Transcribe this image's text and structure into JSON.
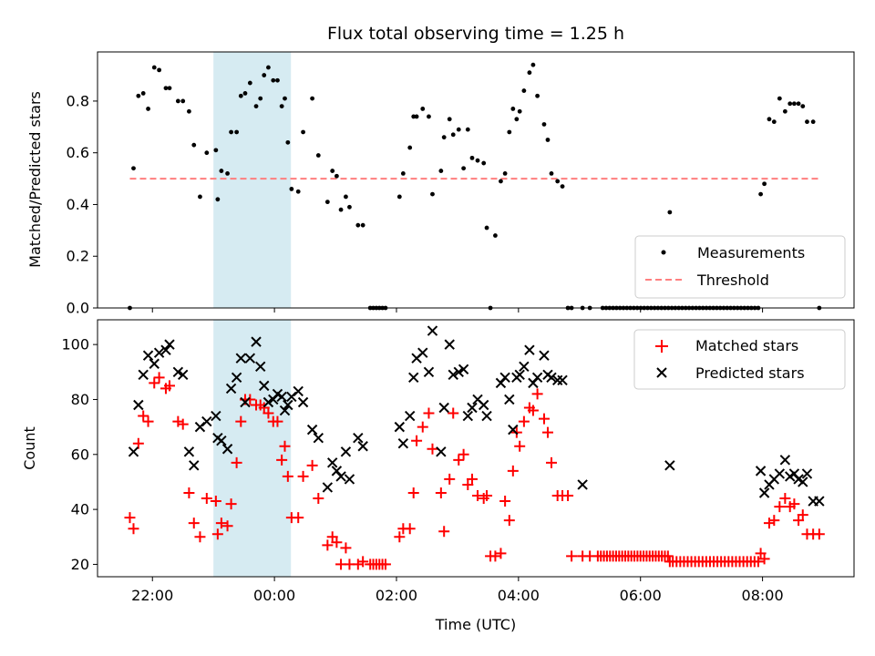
{
  "colors": {
    "measurements": "#000000",
    "threshold": "#ff7f7f",
    "matched": "#ff0000",
    "predicted": "#000000",
    "span": "#add8e6"
  },
  "chart_data": [
    {
      "type": "scatter",
      "title": "Flux total observing time = 1.25 h",
      "xlabel": "",
      "ylabel": "Matched/Predicted stars",
      "x_unit": "hours after 00:00 UTC (negative = previous evening)",
      "xlim": [
        -2.9,
        9.5
      ],
      "ylim": [
        0,
        0.99
      ],
      "yticks": [
        0.0,
        0.2,
        0.4,
        0.6,
        0.8
      ],
      "ytick_labels": [
        "0.0",
        "0.2",
        "0.4",
        "0.6",
        "0.8"
      ],
      "grid": false,
      "legend_position": "lower right",
      "shaded_interval": {
        "x": [
          -1.0,
          0.27
        ],
        "color": "#add8e6"
      },
      "series": [
        {
          "name": "Measurements",
          "style": "dot",
          "color": "#000000",
          "x": [
            -2.37,
            -2.31,
            -2.23,
            -2.15,
            -2.07,
            -1.97,
            -1.89,
            -1.78,
            -1.72,
            -1.58,
            -1.5,
            -1.4,
            -1.32,
            -1.22,
            -1.11,
            -0.96,
            -0.93,
            -0.87,
            -0.77,
            -0.71,
            -0.62,
            -0.55,
            -0.48,
            -0.4,
            -0.3,
            -0.23,
            -0.17,
            -0.1,
            -0.02,
            0.05,
            0.12,
            0.17,
            0.22,
            0.28,
            0.39,
            0.47,
            0.62,
            0.72,
            0.87,
            0.95,
            1.02,
            1.09,
            1.17,
            1.23,
            1.37,
            1.45,
            1.57,
            1.62,
            1.67,
            1.72,
            1.77,
            1.82,
            2.05,
            2.11,
            2.22,
            2.28,
            2.33,
            2.43,
            2.53,
            2.59,
            2.73,
            2.78,
            2.87,
            2.93,
            3.02,
            3.1,
            3.17,
            3.24,
            3.33,
            3.43,
            3.48,
            3.54,
            3.62,
            3.71,
            3.78,
            3.85,
            3.91,
            3.97,
            4.02,
            4.09,
            4.18,
            4.24,
            4.31,
            4.42,
            4.48,
            4.54,
            4.64,
            4.72,
            4.81,
            4.87,
            5.05,
            5.17,
            6.48,
            7.97,
            8.03,
            8.11,
            8.19,
            8.28,
            8.37,
            8.45,
            8.52,
            8.59,
            8.66,
            8.73,
            8.83,
            8.93
          ],
          "y": [
            0.0,
            0.54,
            0.82,
            0.83,
            0.77,
            0.93,
            0.92,
            0.85,
            0.85,
            0.8,
            0.8,
            0.76,
            0.63,
            0.43,
            0.6,
            0.61,
            0.42,
            0.53,
            0.52,
            0.68,
            0.68,
            0.82,
            0.83,
            0.87,
            0.78,
            0.81,
            0.9,
            0.93,
            0.88,
            0.88,
            0.78,
            0.81,
            0.64,
            0.46,
            0.45,
            0.68,
            0.81,
            0.59,
            0.41,
            0.53,
            0.51,
            0.38,
            0.43,
            0.39,
            0.32,
            0.32,
            0.0,
            0.0,
            0.0,
            0.0,
            0.0,
            0.0,
            0.43,
            0.52,
            0.62,
            0.74,
            0.74,
            0.77,
            0.74,
            0.44,
            0.53,
            0.66,
            0.73,
            0.67,
            0.69,
            0.54,
            0.69,
            0.58,
            0.57,
            0.56,
            0.31,
            0.0,
            0.28,
            0.49,
            0.52,
            0.68,
            0.77,
            0.73,
            0.76,
            0.84,
            0.91,
            0.94,
            0.82,
            0.71,
            0.65,
            0.52,
            0.49,
            0.47,
            0.0,
            0.0,
            0.0,
            0.0,
            0.37,
            0.44,
            0.48,
            0.73,
            0.72,
            0.81,
            0.76,
            0.79,
            0.79,
            0.79,
            0.78,
            0.72,
            0.72,
            0.0
          ]
        },
        {
          "name": "Threshold",
          "style": "dashed-line",
          "color": "#ff7f7f",
          "x": [
            -2.37,
            8.96
          ],
          "y": [
            0.5,
            0.5
          ]
        }
      ],
      "zero_runs": [
        {
          "x_start": 5.38,
          "x_end": 7.93,
          "count": 46,
          "y": 0.0
        }
      ]
    },
    {
      "type": "scatter",
      "title": "",
      "xlabel": "Time (UTC)",
      "ylabel": "Count",
      "x_unit": "hours after 00:00 UTC (negative = previous evening)",
      "xlim": [
        -2.9,
        9.5
      ],
      "ylim": [
        15.5,
        109
      ],
      "yticks": [
        20,
        40,
        60,
        80,
        100
      ],
      "ytick_labels": [
        "20",
        "40",
        "60",
        "80",
        "100"
      ],
      "xticks": [
        -2,
        0,
        2,
        4,
        6,
        8
      ],
      "xtick_labels": [
        "22:00",
        "00:00",
        "02:00",
        "04:00",
        "06:00",
        "08:00"
      ],
      "grid": false,
      "legend_position": "upper right",
      "shaded_interval": {
        "x": [
          -1.0,
          0.27
        ],
        "color": "#add8e6"
      },
      "series": [
        {
          "name": "Matched stars",
          "style": "plus",
          "color": "#ff0000",
          "x": [
            -2.37,
            -2.31,
            -2.23,
            -2.15,
            -2.07,
            -1.97,
            -1.89,
            -1.78,
            -1.72,
            -1.58,
            -1.5,
            -1.4,
            -1.32,
            -1.22,
            -1.11,
            -0.96,
            -0.93,
            -0.87,
            -0.77,
            -0.71,
            -0.62,
            -0.55,
            -0.48,
            -0.4,
            -0.3,
            -0.23,
            -0.17,
            -0.1,
            -0.02,
            0.05,
            0.12,
            0.17,
            0.22,
            0.28,
            0.39,
            0.47,
            0.62,
            0.72,
            0.87,
            0.95,
            1.02,
            1.09,
            1.17,
            1.23,
            1.37,
            1.45,
            1.57,
            1.62,
            1.67,
            1.72,
            1.77,
            1.82,
            2.05,
            2.11,
            2.22,
            2.28,
            2.33,
            2.43,
            2.53,
            2.59,
            2.73,
            2.78,
            2.87,
            2.93,
            3.02,
            3.1,
            3.17,
            3.24,
            3.33,
            3.43,
            3.48,
            3.54,
            3.62,
            3.71,
            3.78,
            3.85,
            3.91,
            3.97,
            4.02,
            4.09,
            4.18,
            4.24,
            4.31,
            4.42,
            4.48,
            4.54,
            4.64,
            4.72,
            4.81,
            4.87,
            5.05,
            5.17,
            6.48,
            7.97,
            8.03,
            8.11,
            8.19,
            8.28,
            8.37,
            8.45,
            8.52,
            8.59,
            8.66,
            8.73,
            8.83,
            8.93
          ],
          "y": [
            37,
            33,
            64,
            74,
            72,
            86,
            88,
            84,
            85,
            72,
            71,
            46,
            35,
            30,
            44,
            43,
            31,
            35,
            34,
            42,
            57,
            72,
            80,
            80,
            78,
            78,
            77,
            75,
            72,
            72,
            58,
            63,
            52,
            37,
            37,
            52,
            56,
            44,
            27,
            30,
            28,
            20,
            26,
            20,
            20,
            21,
            20,
            20,
            20,
            20,
            20,
            20,
            30,
            33,
            33,
            46,
            65,
            70,
            75,
            62,
            46,
            32,
            51,
            75,
            58,
            60,
            49,
            51,
            45,
            44,
            45,
            23,
            23,
            24,
            43,
            36,
            54,
            68,
            63,
            72,
            77,
            76,
            82,
            73,
            68,
            57,
            45,
            45,
            45,
            23,
            23,
            23,
            21,
            24,
            22,
            35,
            36,
            41,
            44,
            41,
            42,
            36,
            38,
            31,
            31,
            31
          ]
        },
        {
          "name": "Predicted stars",
          "style": "x",
          "color": "#000000",
          "x": [
            -2.31,
            -2.23,
            -2.15,
            -2.07,
            -1.97,
            -1.89,
            -1.78,
            -1.72,
            -1.58,
            -1.5,
            -1.4,
            -1.32,
            -1.22,
            -1.11,
            -0.96,
            -0.93,
            -0.87,
            -0.77,
            -0.71,
            -0.62,
            -0.55,
            -0.48,
            -0.4,
            -0.3,
            -0.23,
            -0.17,
            -0.1,
            -0.02,
            0.05,
            0.12,
            0.17,
            0.22,
            0.28,
            0.39,
            0.47,
            0.62,
            0.72,
            0.87,
            0.95,
            1.02,
            1.09,
            1.17,
            1.23,
            1.37,
            1.45,
            2.05,
            2.11,
            2.22,
            2.28,
            2.33,
            2.43,
            2.53,
            2.59,
            2.73,
            2.78,
            2.87,
            2.93,
            3.02,
            3.1,
            3.17,
            3.24,
            3.33,
            3.43,
            3.48,
            3.71,
            3.78,
            3.85,
            3.91,
            3.97,
            4.02,
            4.09,
            4.18,
            4.24,
            4.31,
            4.42,
            4.48,
            4.54,
            4.64,
            4.72,
            5.05,
            6.48,
            7.97,
            8.03,
            8.11,
            8.19,
            8.28,
            8.37,
            8.45,
            8.52,
            8.59,
            8.66,
            8.73,
            8.83,
            8.93
          ],
          "y": [
            61,
            78,
            89,
            96,
            93,
            97,
            98,
            100,
            90,
            89,
            61,
            56,
            70,
            72,
            74,
            66,
            65,
            62,
            84,
            88,
            95,
            79,
            95,
            101,
            92,
            85,
            79,
            80,
            82,
            81,
            76,
            78,
            81,
            83,
            79,
            69,
            66,
            48,
            57,
            54,
            52,
            61,
            51,
            66,
            63,
            70,
            64,
            74,
            88,
            95,
            97,
            90,
            105,
            61,
            77,
            100,
            89,
            90,
            91,
            74,
            77,
            80,
            78,
            74,
            86,
            88,
            80,
            69,
            88,
            89,
            92,
            98,
            86,
            88,
            96,
            89,
            88,
            87,
            87,
            49,
            56,
            54,
            46,
            49,
            51,
            53,
            58,
            52,
            53,
            51,
            50,
            53,
            43,
            43
          ]
        }
      ],
      "constant_runs": [
        {
          "series": "Matched stars",
          "x_start": 5.3,
          "x_end": 6.45,
          "count": 24,
          "y": 23
        },
        {
          "series": "Matched stars",
          "x_start": 6.53,
          "x_end": 7.93,
          "count": 24,
          "y": 21
        }
      ]
    }
  ]
}
